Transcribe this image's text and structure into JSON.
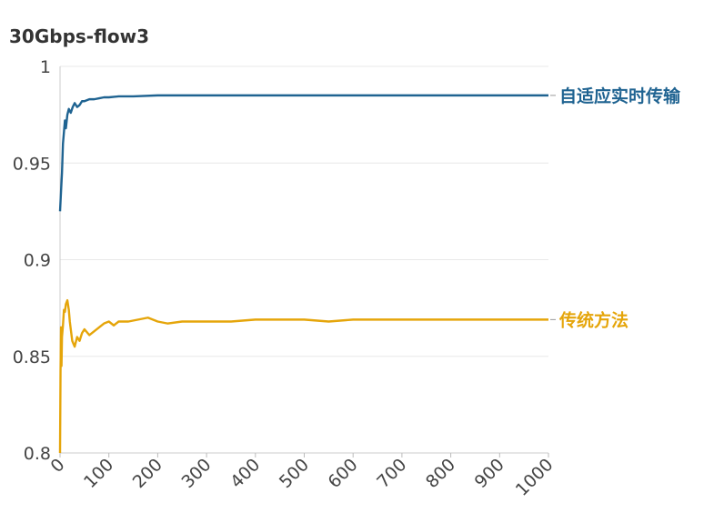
{
  "chart_data": {
    "type": "line",
    "title": "30Gbps-flow3",
    "xlabel": "",
    "ylabel": "",
    "xlim": [
      0,
      1000
    ],
    "ylim": [
      0.8,
      1
    ],
    "x_ticks": [
      "0",
      "100",
      "200",
      "300",
      "400",
      "500",
      "600",
      "700",
      "800",
      "900",
      "1000"
    ],
    "y_ticks": [
      "0.8",
      "0.85",
      "0.9",
      "0.95",
      "1"
    ],
    "grid": true,
    "legend": "inline-right",
    "series": [
      {
        "name": "自适应实时传输",
        "color": "#1f6391",
        "x": [
          0,
          2,
          4,
          6,
          8,
          10,
          12,
          15,
          18,
          22,
          26,
          30,
          35,
          40,
          45,
          50,
          60,
          70,
          80,
          90,
          100,
          120,
          150,
          200,
          250,
          300,
          400,
          500,
          600,
          700,
          800,
          900,
          1000
        ],
        "y": [
          0.925,
          0.935,
          0.945,
          0.96,
          0.966,
          0.972,
          0.968,
          0.975,
          0.978,
          0.976,
          0.979,
          0.981,
          0.979,
          0.98,
          0.982,
          0.982,
          0.983,
          0.983,
          0.9835,
          0.984,
          0.984,
          0.9845,
          0.9845,
          0.985,
          0.985,
          0.985,
          0.985,
          0.985,
          0.985,
          0.985,
          0.985,
          0.985,
          0.985
        ]
      },
      {
        "name": "传统方法",
        "color": "#e5a50a",
        "x": [
          0,
          1,
          2,
          3,
          4,
          6,
          8,
          10,
          12,
          15,
          18,
          20,
          25,
          30,
          35,
          40,
          45,
          50,
          60,
          70,
          80,
          90,
          100,
          110,
          120,
          140,
          160,
          180,
          200,
          220,
          250,
          300,
          350,
          400,
          450,
          500,
          550,
          600,
          650,
          700,
          750,
          800,
          850,
          900,
          950,
          1000
        ],
        "y": [
          0.8,
          0.842,
          0.865,
          0.845,
          0.86,
          0.866,
          0.874,
          0.873,
          0.877,
          0.879,
          0.874,
          0.868,
          0.858,
          0.855,
          0.86,
          0.858,
          0.862,
          0.864,
          0.861,
          0.863,
          0.865,
          0.867,
          0.868,
          0.866,
          0.868,
          0.868,
          0.869,
          0.87,
          0.868,
          0.867,
          0.868,
          0.868,
          0.868,
          0.869,
          0.869,
          0.869,
          0.868,
          0.869,
          0.869,
          0.869,
          0.869,
          0.869,
          0.869,
          0.869,
          0.869,
          0.869
        ]
      }
    ]
  }
}
